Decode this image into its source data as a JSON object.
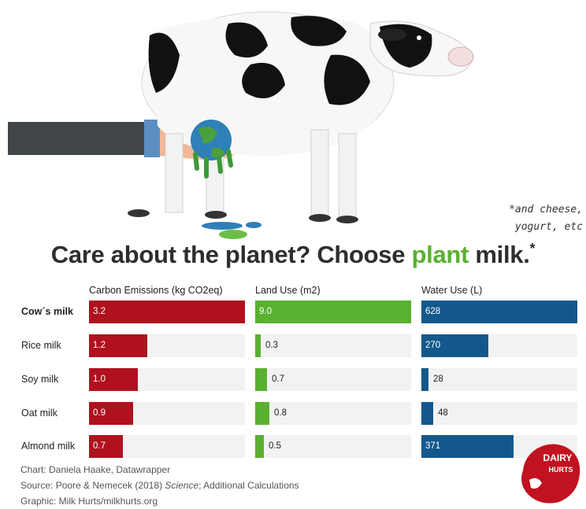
{
  "headline": {
    "pre": "Care about the planet? Choose ",
    "accent": "plant",
    "post": " milk.",
    "star": "*"
  },
  "note": {
    "line1": "*and cheese,",
    "line2": "yogurt, etc"
  },
  "colors": {
    "carbon": "#b0111f",
    "land": "#5ab030",
    "water": "#13588d",
    "track": "#f2f2f2"
  },
  "chart_data": {
    "type": "bar",
    "title": "Care about the planet? Choose plant milk.*",
    "categories": [
      "Cow´s milk",
      "Rice milk",
      "Soy milk",
      "Oat milk",
      "Almond milk"
    ],
    "series": [
      {
        "name": "Carbon Emissions (kg CO2eq)",
        "values": [
          3.2,
          1.2,
          1.0,
          0.9,
          0.7
        ],
        "labels": [
          "3.2",
          "1.2",
          "1.0",
          "0.9",
          "0.7"
        ],
        "xlim": [
          0,
          3.2
        ]
      },
      {
        "name": "Land Use (m2)",
        "values": [
          9.0,
          0.3,
          0.7,
          0.8,
          0.5
        ],
        "labels": [
          "9.0",
          "0.3",
          "0.7",
          "0.8",
          "0.5"
        ],
        "xlim": [
          0,
          9.0
        ]
      },
      {
        "name": "Water Use (L)",
        "values": [
          628,
          270,
          28,
          48,
          371
        ],
        "labels": [
          "628",
          "270",
          "28",
          "48",
          "371"
        ],
        "xlim": [
          0,
          628
        ]
      }
    ]
  },
  "credits": {
    "chart": "Chart: Daniela Haake, Datawrapper",
    "source_pre": "Source: Poore & Nemecek (2018) ",
    "source_journal": "Science",
    "source_post": "; Additional Calculations",
    "graphic": "Graphic: Milk Hurts/milkhurts.org"
  },
  "logo": {
    "line1": "DAIRY",
    "line2": "HURTS"
  }
}
